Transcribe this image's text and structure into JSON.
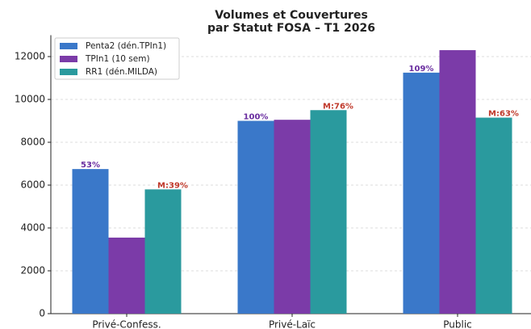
{
  "chart_data": {
    "type": "bar",
    "title_lines": [
      "Volumes et Couvertures",
      "par Statut FOSA – T1 2026"
    ],
    "categories": [
      "Privé-Confess.",
      "Privé-Laïc",
      "Public"
    ],
    "series": [
      {
        "name": "Penta2 (dén.TPIn1)",
        "color": "#3a78c9",
        "values": [
          6750,
          9000,
          11250
        ]
      },
      {
        "name": "TPIn1 (10 sem)",
        "color": "#7b3ba8",
        "values": [
          3550,
          9050,
          12300
        ]
      },
      {
        "name": "RR1 (dén.MILDA)",
        "color": "#2a9a9e",
        "values": [
          5800,
          9500,
          9150
        ]
      }
    ],
    "coverage_labels": [
      "53%",
      "100%",
      "109%"
    ],
    "coverage_label_color": "#6a2ea0",
    "malaria_labels": [
      "M:39%",
      "M:76%",
      "M:63%"
    ],
    "malaria_label_color": "#c0392b",
    "ylim": [
      0,
      13000
    ],
    "yticks": [
      0,
      2000,
      4000,
      6000,
      8000,
      10000,
      12000
    ],
    "grid": true,
    "legend": "upper left"
  }
}
